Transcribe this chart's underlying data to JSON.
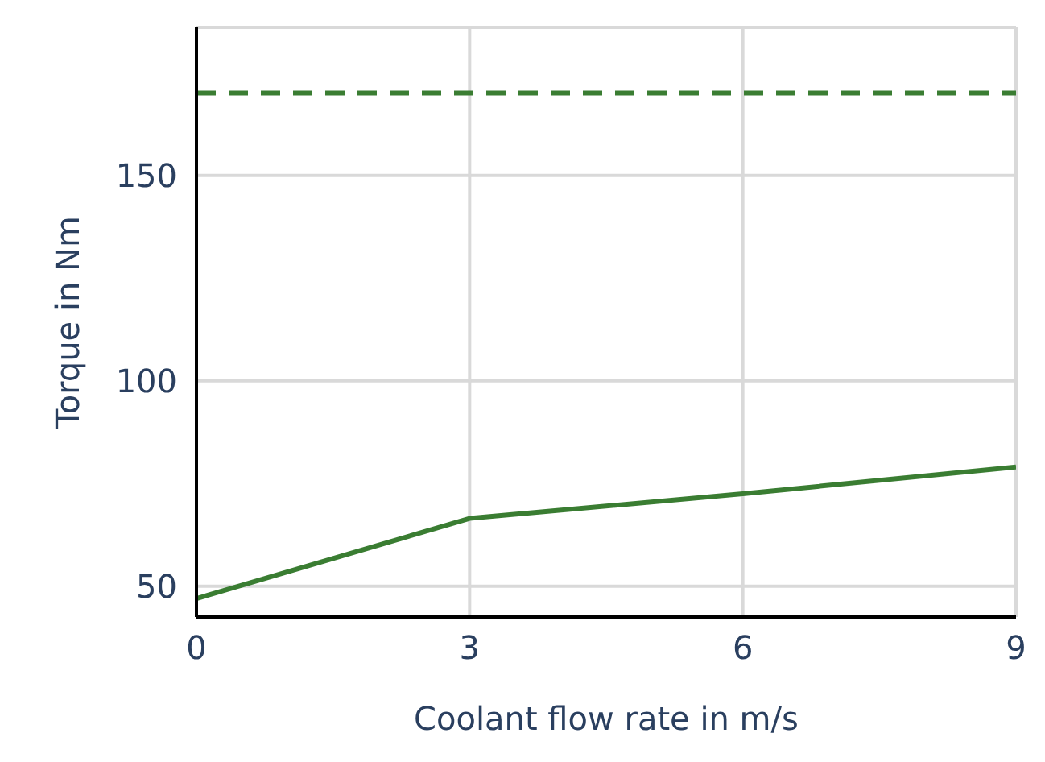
{
  "chart_data": {
    "type": "line",
    "xlabel": "Coolant flow rate in m/s",
    "ylabel": "Torque in Nm",
    "x": [
      0,
      3,
      6,
      9
    ],
    "series": [
      {
        "color": "#3a7d32",
        "values": [
          47,
          66.5,
          72.5,
          79
        ]
      }
    ],
    "ref_lines": [
      {
        "axis": "y",
        "value": 170,
        "color": "#3a7d32",
        "line_style": "dashed"
      }
    ],
    "xlim": [
      0,
      9
    ],
    "xticks": [
      0,
      3,
      6,
      9
    ],
    "ylim": [
      42.5,
      186
    ],
    "yticks": [
      50,
      100,
      150
    ],
    "grid": true,
    "marker": "none",
    "line_style": "solid"
  }
}
